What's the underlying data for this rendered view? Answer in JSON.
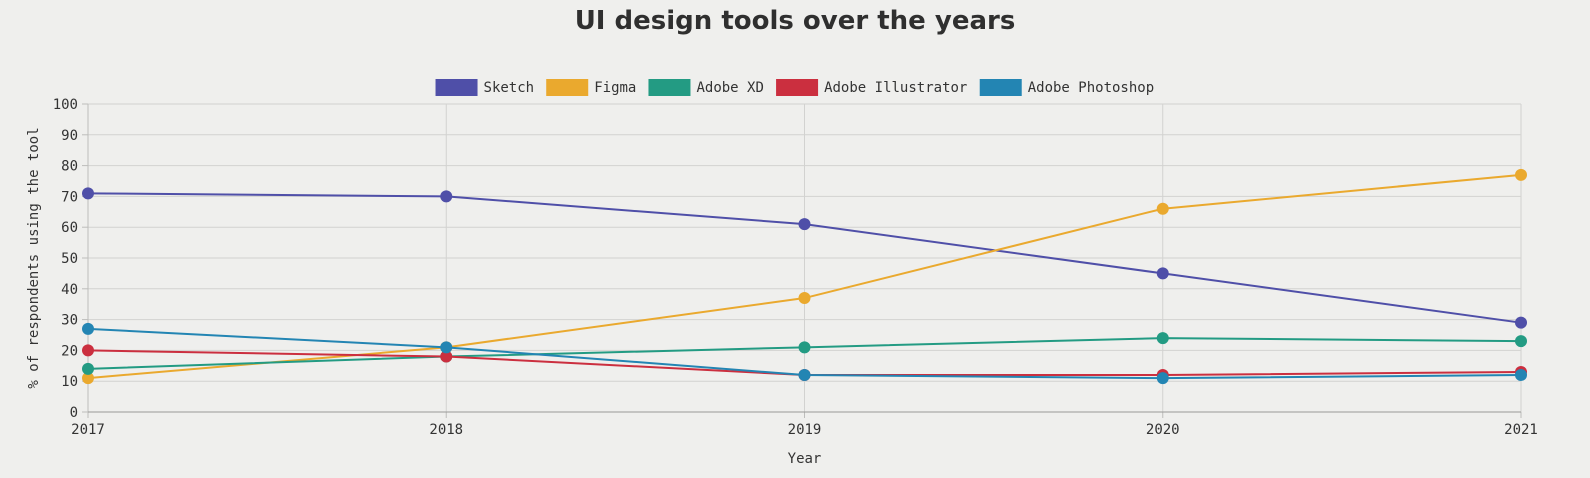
{
  "chart_data": {
    "type": "line",
    "title": "UI design tools over the years",
    "xlabel": "Year",
    "ylabel": "% of respondents using the tool",
    "x": [
      "2017",
      "2018",
      "2019",
      "2020",
      "2021"
    ],
    "ylim": [
      0,
      100
    ],
    "yticks": [
      0,
      10,
      20,
      30,
      40,
      50,
      60,
      70,
      80,
      90,
      100
    ],
    "grid": true,
    "legend_position": "top-center",
    "series": [
      {
        "name": "Sketch",
        "color": "#4f4fa8",
        "values": [
          71,
          70,
          61,
          45,
          29
        ]
      },
      {
        "name": "Figma",
        "color": "#eaa92e",
        "values": [
          11,
          21,
          37,
          66,
          77
        ]
      },
      {
        "name": "Adobe XD",
        "color": "#239b83",
        "values": [
          14,
          18,
          21,
          24,
          23
        ]
      },
      {
        "name": "Adobe Illustrator",
        "color": "#cb2f3f",
        "values": [
          20,
          18,
          12,
          12,
          13
        ]
      },
      {
        "name": "Adobe Photoshop",
        "color": "#2385b3",
        "values": [
          27,
          21,
          12,
          11,
          12
        ]
      }
    ]
  }
}
